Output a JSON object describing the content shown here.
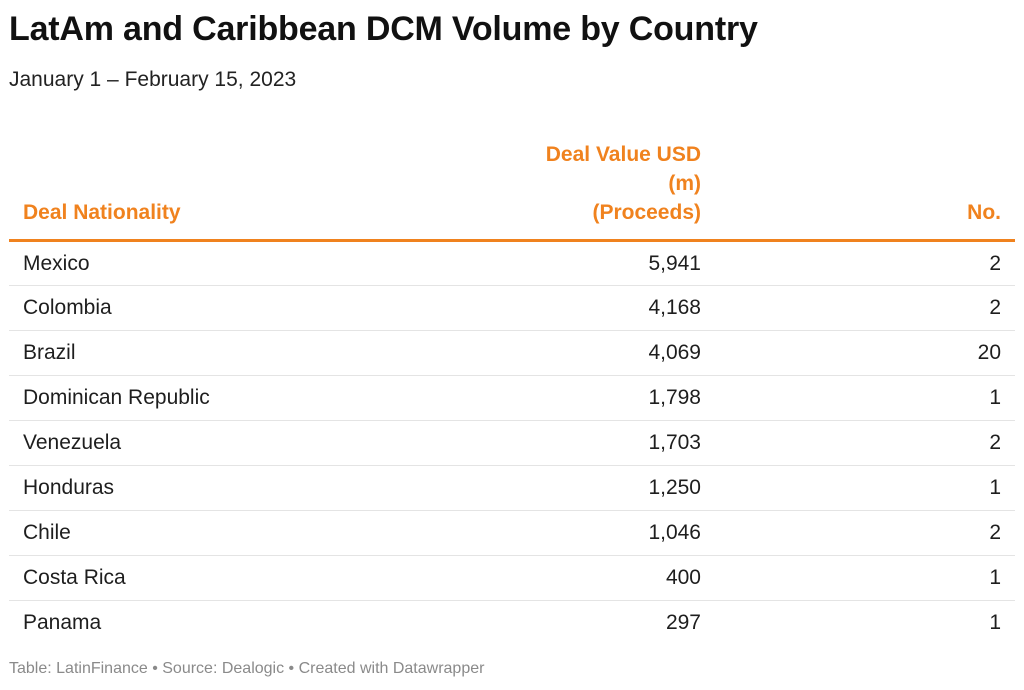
{
  "title": "LatAm and Caribbean DCM Volume by Country",
  "subtitle": "January 1 – February 15, 2023",
  "colors": {
    "accent": "#f0821e",
    "row_divider": "#e4e4e4",
    "footer_text": "#8a8a8a"
  },
  "footer": "Table: LatinFinance • Source: Dealogic • Created with Datawrapper",
  "chart_data": {
    "type": "table",
    "title": "LatAm and Caribbean DCM Volume by Country",
    "subtitle": "January 1 – February 15, 2023",
    "columns": [
      {
        "key": "nationality",
        "label": "Deal Nationality",
        "align": "left"
      },
      {
        "key": "value",
        "label_line1": "Deal Value USD (m)",
        "label_line2": "(Proceeds)",
        "align": "right"
      },
      {
        "key": "count",
        "label": "No.",
        "align": "right"
      }
    ],
    "rows": [
      {
        "nationality": "Mexico",
        "value": "5,941",
        "count": "2"
      },
      {
        "nationality": "Colombia",
        "value": "4,168",
        "count": "2"
      },
      {
        "nationality": "Brazil",
        "value": "4,069",
        "count": "20"
      },
      {
        "nationality": "Dominican Republic",
        "value": "1,798",
        "count": "1"
      },
      {
        "nationality": "Venezuela",
        "value": "1,703",
        "count": "2"
      },
      {
        "nationality": "Honduras",
        "value": "1,250",
        "count": "1"
      },
      {
        "nationality": "Chile",
        "value": "1,046",
        "count": "2"
      },
      {
        "nationality": "Costa Rica",
        "value": "400",
        "count": "1"
      },
      {
        "nationality": "Panama",
        "value": "297",
        "count": "1"
      }
    ]
  }
}
